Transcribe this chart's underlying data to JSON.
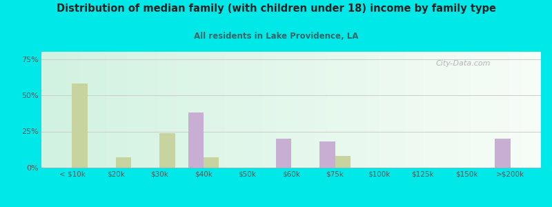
{
  "title": "Distribution of median family (with children under 18) income by family type",
  "subtitle": "All residents in Lake Providence, LA",
  "categories": [
    "< $10k",
    "$20k",
    "$30k",
    "$40k",
    "$50k",
    "$60k",
    "$75k",
    "$100k",
    "$125k",
    "$150k",
    ">$200k"
  ],
  "married_couple": [
    0,
    0,
    0,
    38,
    0,
    20,
    18,
    0,
    0,
    0,
    20
  ],
  "female_no_husband": [
    58,
    7,
    24,
    7,
    0,
    0,
    8,
    0,
    0,
    0,
    0
  ],
  "married_color": "#c9aed4",
  "female_color": "#c8d4a0",
  "bg_color": "#00e8e8",
  "ylim": [
    0,
    80
  ],
  "yticks": [
    0,
    25,
    50,
    75
  ],
  "ytick_labels": [
    "0%",
    "25%",
    "50%",
    "75%"
  ],
  "watermark": "City-Data.com",
  "bar_width": 0.35,
  "title_color": "#222222",
  "subtitle_color": "#336666",
  "tick_color": "#555555"
}
